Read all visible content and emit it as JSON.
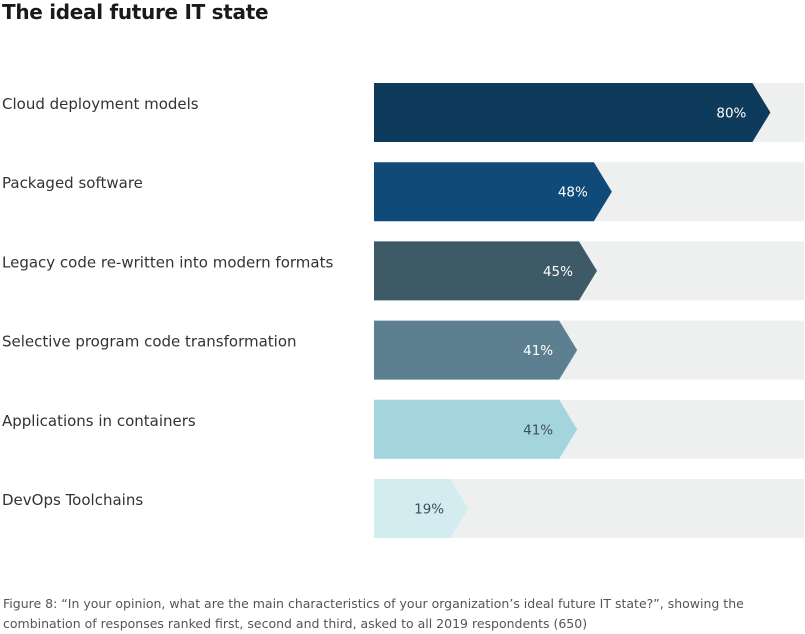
{
  "title": "The ideal future IT state",
  "caption": "Figure 8: “In your opinion, what are the main characteristics of your organization’s ideal future IT state?”, showing the combination of responses ranked first, second and third, asked to all 2019 respondents (650)",
  "colors": {
    "track": "#eef0f0",
    "bars": [
      "#0e3a5b",
      "#0f4a78",
      "#3e5a67",
      "#5d8090",
      "#a4d4dc",
      "#d3ecf0"
    ],
    "value_text": [
      "#ffffff",
      "#ffffff",
      "#ffffff",
      "#ffffff",
      "#3e4f63",
      "#3e4f63"
    ]
  },
  "chart_data": {
    "type": "bar",
    "orientation": "horizontal",
    "categories": [
      "Cloud deployment models",
      "Packaged software",
      "Legacy code re-written into modern formats",
      "Selective program code transformation",
      "Applications in containers",
      "DevOps Toolchains"
    ],
    "values": [
      80,
      48,
      45,
      41,
      41,
      19
    ],
    "value_labels": [
      "80%",
      "48%",
      "45%",
      "41%",
      "41%",
      "19%"
    ],
    "xlim": [
      0,
      100
    ],
    "grid": false,
    "legend": "none"
  }
}
